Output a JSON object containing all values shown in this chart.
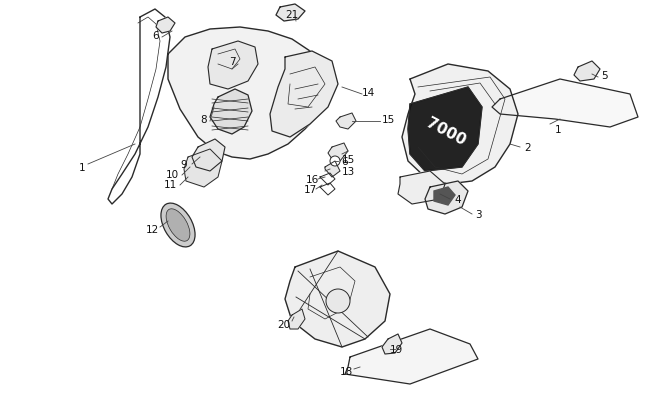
{
  "background_color": "#ffffff",
  "line_color": "#2a2a2a",
  "label_color": "#111111",
  "figsize": [
    6.5,
    4.06
  ],
  "dpi": 100,
  "label_fontsize": 7.5
}
